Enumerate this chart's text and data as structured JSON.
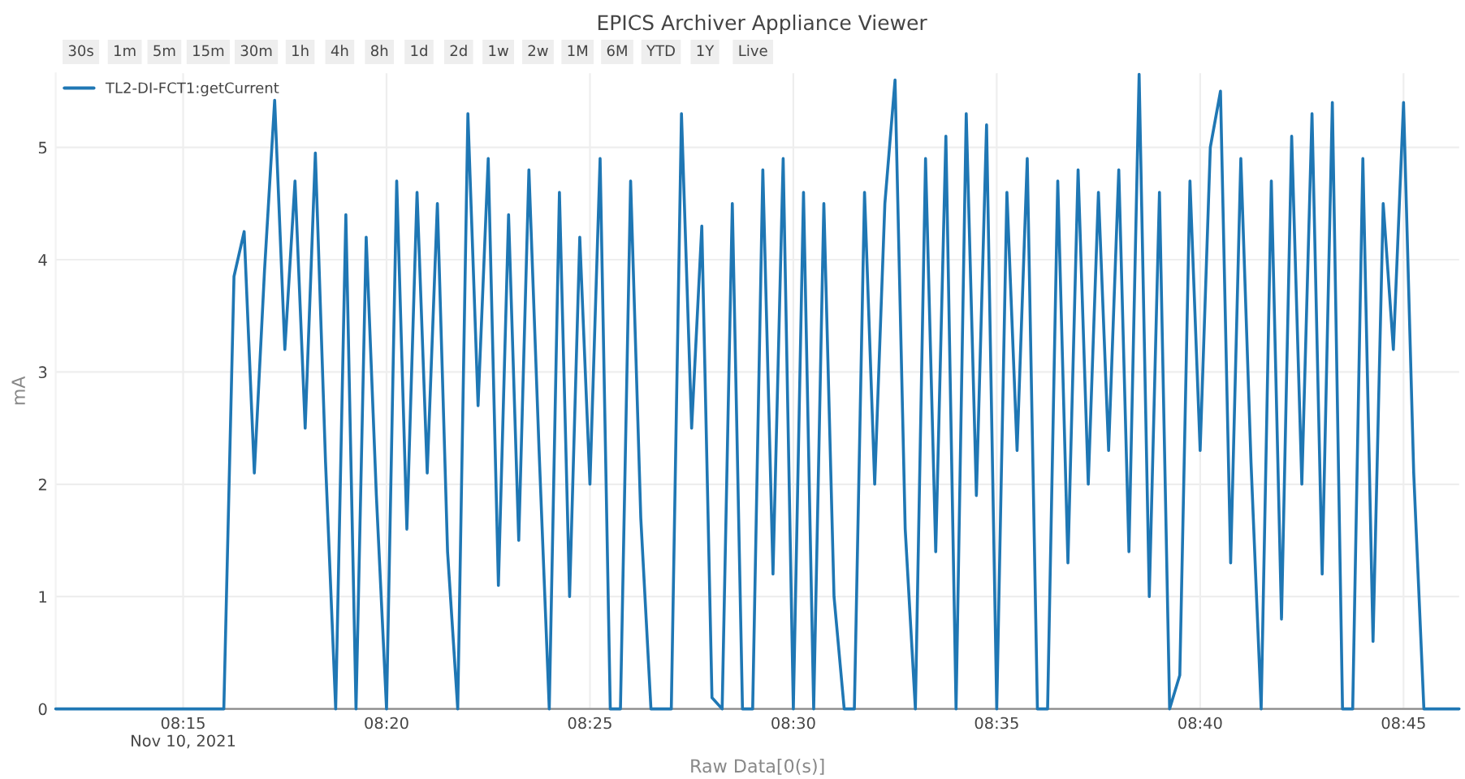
{
  "chart_data": {
    "type": "line",
    "title": "EPICS Archiver Appliance Viewer",
    "xlabel": "Raw Data[0(s)]",
    "ylabel": "mA",
    "annotations": [
      "30s",
      "1m",
      "5m",
      "15m",
      "30m",
      "1h",
      "4h",
      "8h",
      "1d",
      "2d",
      "1w",
      "2w",
      "1M",
      "6M",
      "YTD",
      "1Y",
      "Live"
    ],
    "legend": "top left",
    "grid": true,
    "marker": "none",
    "line_style": "solid",
    "xlim": [
      "2021-11-10T08:11:52",
      "2021-11-10T08:46:22"
    ],
    "xticks": [
      {
        "value": "2021-11-10T08:15",
        "label": "08:15\nNov 10, 2021"
      },
      {
        "value": "2021-11-10T08:20",
        "label": "08:20"
      },
      {
        "value": "2021-11-10T08:25",
        "label": "08:25"
      },
      {
        "value": "2021-11-10T08:30",
        "label": "08:30"
      },
      {
        "value": "2021-11-10T08:35",
        "label": "08:35"
      },
      {
        "value": "2021-11-10T08:40",
        "label": "08:40"
      },
      {
        "value": "2021-11-10T08:45",
        "label": "08:45"
      }
    ],
    "ylim": [
      0,
      5.66
    ],
    "yticks": [
      0,
      1,
      2,
      3,
      4,
      5
    ],
    "series": [
      {
        "name": "TL2-DI-FCT1:getCurrent",
        "color": "#1f77b4",
        "x": [
          "2021-11-10T08:11:52",
          "2021-11-10T08:16:00",
          "2021-11-10T08:16:15",
          "2021-11-10T08:16:30",
          "2021-11-10T08:16:45",
          "2021-11-10T08:17:00",
          "2021-11-10T08:17:15",
          "2021-11-10T08:17:30",
          "2021-11-10T08:17:45",
          "2021-11-10T08:18:00",
          "2021-11-10T08:18:15",
          "2021-11-10T08:18:30",
          "2021-11-10T08:18:45",
          "2021-11-10T08:19:00",
          "2021-11-10T08:19:15",
          "2021-11-10T08:19:30",
          "2021-11-10T08:19:45",
          "2021-11-10T08:20:00",
          "2021-11-10T08:20:15",
          "2021-11-10T08:20:30",
          "2021-11-10T08:20:45",
          "2021-11-10T08:21:00",
          "2021-11-10T08:21:15",
          "2021-11-10T08:21:30",
          "2021-11-10T08:21:45",
          "2021-11-10T08:22:00",
          "2021-11-10T08:22:15",
          "2021-11-10T08:22:30",
          "2021-11-10T08:22:45",
          "2021-11-10T08:23:00",
          "2021-11-10T08:23:15",
          "2021-11-10T08:23:30",
          "2021-11-10T08:23:45",
          "2021-11-10T08:24:00",
          "2021-11-10T08:24:15",
          "2021-11-10T08:24:30",
          "2021-11-10T08:24:45",
          "2021-11-10T08:25:00",
          "2021-11-10T08:25:15",
          "2021-11-10T08:25:30",
          "2021-11-10T08:25:45",
          "2021-11-10T08:26:00",
          "2021-11-10T08:26:15",
          "2021-11-10T08:26:30",
          "2021-11-10T08:26:45",
          "2021-11-10T08:27:00",
          "2021-11-10T08:27:15",
          "2021-11-10T08:27:30",
          "2021-11-10T08:27:45",
          "2021-11-10T08:28:00",
          "2021-11-10T08:28:15",
          "2021-11-10T08:28:30",
          "2021-11-10T08:28:45",
          "2021-11-10T08:29:00",
          "2021-11-10T08:29:15",
          "2021-11-10T08:29:30",
          "2021-11-10T08:29:45",
          "2021-11-10T08:30:00",
          "2021-11-10T08:30:15",
          "2021-11-10T08:30:30",
          "2021-11-10T08:30:45",
          "2021-11-10T08:31:00",
          "2021-11-10T08:31:15",
          "2021-11-10T08:31:30",
          "2021-11-10T08:31:45",
          "2021-11-10T08:32:00",
          "2021-11-10T08:32:15",
          "2021-11-10T08:32:30",
          "2021-11-10T08:32:45",
          "2021-11-10T08:33:00",
          "2021-11-10T08:33:15",
          "2021-11-10T08:33:30",
          "2021-11-10T08:33:45",
          "2021-11-10T08:34:00",
          "2021-11-10T08:34:15",
          "2021-11-10T08:34:30",
          "2021-11-10T08:34:45",
          "2021-11-10T08:35:00",
          "2021-11-10T08:35:15",
          "2021-11-10T08:35:30",
          "2021-11-10T08:35:45",
          "2021-11-10T08:36:00",
          "2021-11-10T08:36:15",
          "2021-11-10T08:36:30",
          "2021-11-10T08:36:45",
          "2021-11-10T08:37:00",
          "2021-11-10T08:37:15",
          "2021-11-10T08:37:30",
          "2021-11-10T08:37:45",
          "2021-11-10T08:38:00",
          "2021-11-10T08:38:15",
          "2021-11-10T08:38:30",
          "2021-11-10T08:38:45",
          "2021-11-10T08:39:00",
          "2021-11-10T08:39:15",
          "2021-11-10T08:39:30",
          "2021-11-10T08:39:45",
          "2021-11-10T08:40:00",
          "2021-11-10T08:40:15",
          "2021-11-10T08:40:30",
          "2021-11-10T08:40:45",
          "2021-11-10T08:41:00",
          "2021-11-10T08:41:15",
          "2021-11-10T08:41:30",
          "2021-11-10T08:41:45",
          "2021-11-10T08:42:00",
          "2021-11-10T08:42:15",
          "2021-11-10T08:42:30",
          "2021-11-10T08:42:45",
          "2021-11-10T08:43:00",
          "2021-11-10T08:43:15",
          "2021-11-10T08:43:30",
          "2021-11-10T08:43:45",
          "2021-11-10T08:44:00",
          "2021-11-10T08:44:15",
          "2021-11-10T08:44:30",
          "2021-11-10T08:44:45",
          "2021-11-10T08:45:00",
          "2021-11-10T08:45:15",
          "2021-11-10T08:45:30",
          "2021-11-10T08:46:22"
        ],
        "values": [
          0,
          0,
          3.85,
          4.25,
          2.1,
          3.9,
          5.42,
          3.2,
          4.7,
          2.5,
          4.95,
          2.2,
          0,
          4.4,
          0,
          4.2,
          1.9,
          0,
          4.7,
          1.6,
          4.6,
          2.1,
          4.5,
          1.4,
          0,
          5.3,
          2.7,
          4.9,
          1.1,
          4.4,
          1.5,
          4.8,
          2.3,
          0,
          4.6,
          1.0,
          4.2,
          2.0,
          4.9,
          0,
          0,
          4.7,
          1.7,
          0,
          0,
          0,
          5.3,
          2.5,
          4.3,
          0.1,
          0,
          4.5,
          0,
          0,
          4.8,
          1.2,
          4.9,
          0,
          4.6,
          0,
          4.5,
          1.0,
          0,
          0,
          4.6,
          2.0,
          4.5,
          5.6,
          1.6,
          0,
          4.9,
          1.4,
          5.1,
          0,
          5.3,
          1.9,
          5.2,
          0,
          4.6,
          2.3,
          4.9,
          0,
          0,
          4.7,
          1.3,
          4.8,
          2.0,
          4.6,
          2.3,
          4.8,
          1.4,
          5.65,
          1.0,
          4.6,
          0,
          0.3,
          4.7,
          2.3,
          5.0,
          5.5,
          1.3,
          4.9,
          2.2,
          0,
          4.7,
          0.8,
          5.1,
          2.0,
          5.3,
          1.2,
          5.4,
          0,
          0,
          4.9,
          0.6,
          4.5,
          3.2,
          5.4,
          2.1,
          0,
          0
        ]
      }
    ]
  }
}
